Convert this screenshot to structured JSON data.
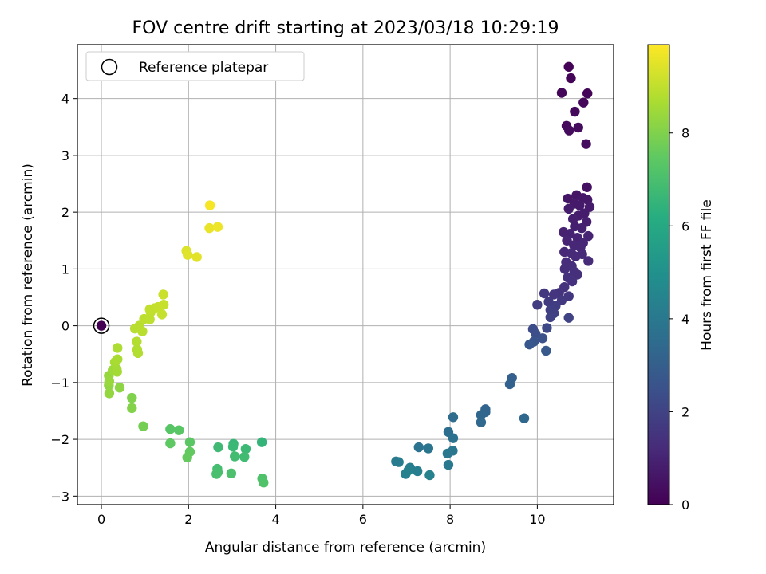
{
  "chart_data": {
    "type": "scatter",
    "title": "FOV centre drift starting at 2023/03/18 10:29:19",
    "xlabel": "Angular distance from reference (arcmin)",
    "ylabel": "Rotation from reference (arcmin)",
    "xlim": [
      -0.55,
      11.75
    ],
    "ylim": [
      -3.15,
      4.95
    ],
    "xticks": [
      0,
      2,
      4,
      6,
      8,
      10
    ],
    "yticks": [
      -3,
      -2,
      -1,
      0,
      1,
      2,
      3,
      4
    ],
    "grid": true,
    "legend": {
      "position": "top-left",
      "entries": [
        "Reference platepar"
      ]
    },
    "reference_point": {
      "x": 0,
      "y": 0
    },
    "colorbar": {
      "label": "Hours from first FF file",
      "colormap": "viridis",
      "range": [
        0,
        9.9
      ],
      "ticks": [
        0,
        2,
        4,
        6,
        8
      ]
    },
    "points": [
      {
        "x": 10.72,
        "y": 4.56,
        "h": 0.05
      },
      {
        "x": 10.77,
        "y": 4.36,
        "h": 0.1
      },
      {
        "x": 10.56,
        "y": 4.1,
        "h": 0.15
      },
      {
        "x": 11.15,
        "y": 4.09,
        "h": 0.12
      },
      {
        "x": 11.06,
        "y": 3.93,
        "h": 0.18
      },
      {
        "x": 10.86,
        "y": 3.77,
        "h": 0.22
      },
      {
        "x": 10.67,
        "y": 3.52,
        "h": 0.25
      },
      {
        "x": 10.94,
        "y": 3.49,
        "h": 0.3
      },
      {
        "x": 10.73,
        "y": 3.44,
        "h": 0.28
      },
      {
        "x": 11.12,
        "y": 3.2,
        "h": 0.35
      },
      {
        "x": 11.14,
        "y": 2.44,
        "h": 0.5
      },
      {
        "x": 10.9,
        "y": 2.3,
        "h": 0.55
      },
      {
        "x": 10.7,
        "y": 2.24,
        "h": 0.6
      },
      {
        "x": 11.05,
        "y": 2.25,
        "h": 0.62
      },
      {
        "x": 11.15,
        "y": 2.22,
        "h": 0.65
      },
      {
        "x": 10.85,
        "y": 2.15,
        "h": 0.7
      },
      {
        "x": 10.97,
        "y": 2.12,
        "h": 0.72
      },
      {
        "x": 11.2,
        "y": 2.09,
        "h": 0.75
      },
      {
        "x": 10.72,
        "y": 2.06,
        "h": 0.78
      },
      {
        "x": 11.08,
        "y": 1.98,
        "h": 0.8
      },
      {
        "x": 10.95,
        "y": 1.94,
        "h": 0.82
      },
      {
        "x": 10.82,
        "y": 1.88,
        "h": 0.85
      },
      {
        "x": 11.13,
        "y": 1.83,
        "h": 0.88
      },
      {
        "x": 10.86,
        "y": 1.75,
        "h": 0.9
      },
      {
        "x": 11.02,
        "y": 1.72,
        "h": 0.92
      },
      {
        "x": 10.6,
        "y": 1.65,
        "h": 0.95
      },
      {
        "x": 10.75,
        "y": 1.62,
        "h": 0.98
      },
      {
        "x": 11.17,
        "y": 1.58,
        "h": 1.0
      },
      {
        "x": 10.92,
        "y": 1.55,
        "h": 1.02
      },
      {
        "x": 10.68,
        "y": 1.5,
        "h": 1.05
      },
      {
        "x": 11.05,
        "y": 1.46,
        "h": 1.08
      },
      {
        "x": 10.84,
        "y": 1.42,
        "h": 1.1
      },
      {
        "x": 10.99,
        "y": 1.38,
        "h": 1.12
      },
      {
        "x": 10.62,
        "y": 1.3,
        "h": 1.15
      },
      {
        "x": 10.78,
        "y": 1.28,
        "h": 1.18
      },
      {
        "x": 11.03,
        "y": 1.26,
        "h": 1.2
      },
      {
        "x": 10.88,
        "y": 1.22,
        "h": 1.22
      },
      {
        "x": 11.17,
        "y": 1.14,
        "h": 1.25
      },
      {
        "x": 10.66,
        "y": 1.12,
        "h": 1.28
      },
      {
        "x": 10.79,
        "y": 1.05,
        "h": 1.3
      },
      {
        "x": 10.63,
        "y": 1.0,
        "h": 1.32
      },
      {
        "x": 10.85,
        "y": 0.95,
        "h": 1.35
      },
      {
        "x": 10.92,
        "y": 0.9,
        "h": 1.38
      },
      {
        "x": 10.7,
        "y": 0.85,
        "h": 1.4
      },
      {
        "x": 10.8,
        "y": 0.78,
        "h": 1.42
      },
      {
        "x": 10.62,
        "y": 0.68,
        "h": 1.45
      },
      {
        "x": 10.5,
        "y": 0.58,
        "h": 1.5
      },
      {
        "x": 10.38,
        "y": 0.55,
        "h": 1.55
      },
      {
        "x": 10.16,
        "y": 0.57,
        "h": 1.6
      },
      {
        "x": 10.72,
        "y": 0.52,
        "h": 1.62
      },
      {
        "x": 10.56,
        "y": 0.45,
        "h": 1.68
      },
      {
        "x": 10.26,
        "y": 0.42,
        "h": 1.72
      },
      {
        "x": 10.0,
        "y": 0.37,
        "h": 1.78
      },
      {
        "x": 10.42,
        "y": 0.35,
        "h": 1.82
      },
      {
        "x": 10.3,
        "y": 0.28,
        "h": 1.88
      },
      {
        "x": 10.38,
        "y": 0.22,
        "h": 1.92
      },
      {
        "x": 10.3,
        "y": 0.15,
        "h": 1.98
      },
      {
        "x": 10.72,
        "y": 0.14,
        "h": 2.0
      },
      {
        "x": 10.22,
        "y": -0.04,
        "h": 2.2
      },
      {
        "x": 9.9,
        "y": -0.06,
        "h": 2.3
      },
      {
        "x": 9.96,
        "y": -0.14,
        "h": 2.4
      },
      {
        "x": 10.12,
        "y": -0.22,
        "h": 2.5
      },
      {
        "x": 9.92,
        "y": -0.28,
        "h": 2.6
      },
      {
        "x": 9.82,
        "y": -0.33,
        "h": 2.7
      },
      {
        "x": 10.2,
        "y": -0.44,
        "h": 2.8
      },
      {
        "x": 9.42,
        "y": -0.92,
        "h": 3.0
      },
      {
        "x": 9.37,
        "y": -1.03,
        "h": 3.1
      },
      {
        "x": 8.81,
        "y": -1.47,
        "h": 3.2
      },
      {
        "x": 8.81,
        "y": -1.52,
        "h": 3.25
      },
      {
        "x": 8.71,
        "y": -1.57,
        "h": 3.3
      },
      {
        "x": 9.7,
        "y": -1.63,
        "h": 3.35
      },
      {
        "x": 8.71,
        "y": -1.7,
        "h": 3.4
      },
      {
        "x": 8.07,
        "y": -1.61,
        "h": 3.5
      },
      {
        "x": 7.96,
        "y": -1.87,
        "h": 3.6
      },
      {
        "x": 8.07,
        "y": -1.98,
        "h": 3.7
      },
      {
        "x": 7.28,
        "y": -2.14,
        "h": 3.8
      },
      {
        "x": 7.5,
        "y": -2.16,
        "h": 3.85
      },
      {
        "x": 8.06,
        "y": -2.2,
        "h": 3.9
      },
      {
        "x": 7.94,
        "y": -2.25,
        "h": 3.95
      },
      {
        "x": 7.96,
        "y": -2.45,
        "h": 4.0
      },
      {
        "x": 6.76,
        "y": -2.39,
        "h": 4.1
      },
      {
        "x": 6.82,
        "y": -2.4,
        "h": 4.15
      },
      {
        "x": 7.08,
        "y": -2.5,
        "h": 4.2
      },
      {
        "x": 7.25,
        "y": -2.56,
        "h": 4.25
      },
      {
        "x": 6.98,
        "y": -2.61,
        "h": 4.3
      },
      {
        "x": 7.04,
        "y": -2.55,
        "h": 4.35
      },
      {
        "x": 7.53,
        "y": -2.63,
        "h": 4.4
      },
      {
        "x": 3.68,
        "y": -2.05,
        "h": 6.5
      },
      {
        "x": 3.03,
        "y": -2.08,
        "h": 6.6
      },
      {
        "x": 3.02,
        "y": -2.13,
        "h": 6.65
      },
      {
        "x": 3.31,
        "y": -2.17,
        "h": 6.7
      },
      {
        "x": 2.68,
        "y": -2.14,
        "h": 6.75
      },
      {
        "x": 3.28,
        "y": -2.31,
        "h": 6.8
      },
      {
        "x": 3.06,
        "y": -2.3,
        "h": 6.85
      },
      {
        "x": 2.66,
        "y": -2.52,
        "h": 6.9
      },
      {
        "x": 2.67,
        "y": -2.58,
        "h": 6.95
      },
      {
        "x": 2.64,
        "y": -2.61,
        "h": 7.0
      },
      {
        "x": 2.98,
        "y": -2.6,
        "h": 7.05
      },
      {
        "x": 3.69,
        "y": -2.69,
        "h": 7.1
      },
      {
        "x": 3.72,
        "y": -2.76,
        "h": 7.15
      },
      {
        "x": 1.58,
        "y": -1.82,
        "h": 7.3
      },
      {
        "x": 1.78,
        "y": -1.84,
        "h": 7.35
      },
      {
        "x": 2.03,
        "y": -2.05,
        "h": 7.4
      },
      {
        "x": 1.58,
        "y": -2.07,
        "h": 7.45
      },
      {
        "x": 2.03,
        "y": -2.22,
        "h": 7.5
      },
      {
        "x": 1.97,
        "y": -2.32,
        "h": 7.55
      },
      {
        "x": 0.96,
        "y": -1.77,
        "h": 7.8
      },
      {
        "x": 0.7,
        "y": -1.27,
        "h": 8.0
      },
      {
        "x": 0.7,
        "y": -1.45,
        "h": 8.05
      },
      {
        "x": 0.42,
        "y": -1.09,
        "h": 8.2
      },
      {
        "x": 0.17,
        "y": -1.05,
        "h": 8.25
      },
      {
        "x": 0.18,
        "y": -1.19,
        "h": 8.3
      },
      {
        "x": 0.17,
        "y": -0.88,
        "h": 8.35
      },
      {
        "x": 0.18,
        "y": -0.98,
        "h": 8.4
      },
      {
        "x": 0.26,
        "y": -0.78,
        "h": 8.45
      },
      {
        "x": 0.35,
        "y": -0.76,
        "h": 8.5
      },
      {
        "x": 0.36,
        "y": -0.81,
        "h": 8.55
      },
      {
        "x": 0.31,
        "y": -0.64,
        "h": 8.6
      },
      {
        "x": 0.37,
        "y": -0.59,
        "h": 8.65
      },
      {
        "x": 0.37,
        "y": -0.39,
        "h": 8.7
      },
      {
        "x": 0.82,
        "y": -0.42,
        "h": 8.75
      },
      {
        "x": 0.84,
        "y": -0.48,
        "h": 8.78
      },
      {
        "x": 0.81,
        "y": -0.28,
        "h": 8.8
      },
      {
        "x": 0.77,
        "y": -0.05,
        "h": 8.85
      },
      {
        "x": 0.87,
        "y": 0.0,
        "h": 8.88
      },
      {
        "x": 0.94,
        "y": -0.1,
        "h": 8.9
      },
      {
        "x": 0.98,
        "y": 0.12,
        "h": 8.92
      },
      {
        "x": 1.11,
        "y": 0.11,
        "h": 8.95
      },
      {
        "x": 1.13,
        "y": 0.24,
        "h": 8.98
      },
      {
        "x": 1.11,
        "y": 0.29,
        "h": 9.0
      },
      {
        "x": 1.22,
        "y": 0.31,
        "h": 9.02
      },
      {
        "x": 1.3,
        "y": 0.33,
        "h": 9.05
      },
      {
        "x": 1.39,
        "y": 0.2,
        "h": 9.08
      },
      {
        "x": 1.43,
        "y": 0.37,
        "h": 9.1
      },
      {
        "x": 1.42,
        "y": 0.55,
        "h": 9.12
      },
      {
        "x": 1.95,
        "y": 1.32,
        "h": 9.4
      },
      {
        "x": 1.98,
        "y": 1.25,
        "h": 9.45
      },
      {
        "x": 2.19,
        "y": 1.21,
        "h": 9.5
      },
      {
        "x": 2.48,
        "y": 1.72,
        "h": 9.6
      },
      {
        "x": 2.67,
        "y": 1.74,
        "h": 9.65
      },
      {
        "x": 2.49,
        "y": 2.12,
        "h": 9.8
      }
    ]
  }
}
